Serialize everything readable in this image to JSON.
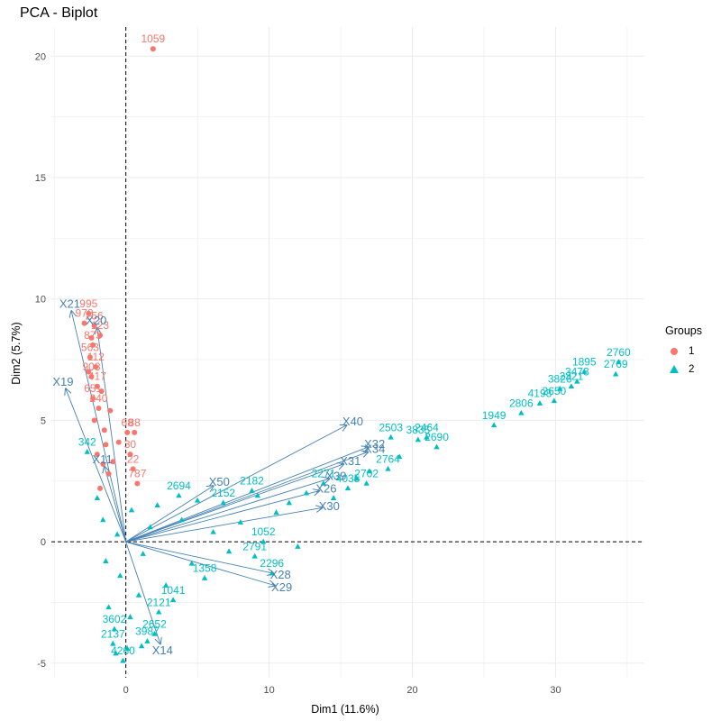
{
  "title": "PCA - Biplot",
  "chart_data": {
    "type": "scatter",
    "title": "PCA - Biplot",
    "xlabel": "Dim1 (11.6%)",
    "ylabel": "Dim2 (5.7%)",
    "xlim": [
      -5.2,
      36.2
    ],
    "ylim": [
      -5.6,
      21.2
    ],
    "xticks": [
      0,
      10,
      20,
      30
    ],
    "yticks": [
      -5,
      0,
      5,
      10,
      15,
      20
    ],
    "grid": true,
    "reference_lines": {
      "x": 0,
      "y": 0,
      "style": "dashed"
    },
    "legend": {
      "title": "Groups",
      "position": "right",
      "entries": [
        {
          "label": "1",
          "color": "#F8766D",
          "shape": "circle"
        },
        {
          "label": "2",
          "color": "#00BFC4",
          "shape": "triangle"
        }
      ]
    },
    "series": [
      {
        "name": "1",
        "color": "#F8766D",
        "points": [
          {
            "x": 1.9,
            "y": 20.3,
            "label": "1059"
          },
          {
            "x": -2.6,
            "y": 9.4,
            "label": "995"
          },
          {
            "x": -2.9,
            "y": 9.0,
            "label": "978"
          },
          {
            "x": -2.2,
            "y": 8.9,
            "label": "256"
          },
          {
            "x": -1.8,
            "y": 8.5,
            "label": "123"
          },
          {
            "x": -2.3,
            "y": 8.1,
            "label": "873"
          },
          {
            "x": -2.5,
            "y": 7.6,
            "label": "563"
          },
          {
            "x": -2.1,
            "y": 7.2,
            "label": "112"
          },
          {
            "x": -2.4,
            "y": 6.8,
            "label": "908"
          },
          {
            "x": -2.0,
            "y": 6.4,
            "label": "417"
          },
          {
            "x": -2.3,
            "y": 5.9,
            "label": "651"
          },
          {
            "x": -1.9,
            "y": 5.5,
            "label": "240"
          },
          {
            "x": 0.1,
            "y": 4.5,
            "label": "68"
          },
          {
            "x": 0.6,
            "y": 4.5,
            "label": "88"
          },
          {
            "x": 0.3,
            "y": 3.6,
            "label": "30"
          },
          {
            "x": 0.5,
            "y": 3.0,
            "label": "22"
          },
          {
            "x": 0.8,
            "y": 2.4,
            "label": "787"
          },
          {
            "x": -1.6,
            "y": 3.2,
            "label": ""
          },
          {
            "x": -1.4,
            "y": 4.0,
            "label": ""
          },
          {
            "x": -2.2,
            "y": 5.0,
            "label": ""
          },
          {
            "x": -1.7,
            "y": 6.2,
            "label": ""
          },
          {
            "x": -2.6,
            "y": 7.0,
            "label": ""
          },
          {
            "x": -1.5,
            "y": 4.6,
            "label": ""
          },
          {
            "x": -2.0,
            "y": 3.6,
            "label": ""
          },
          {
            "x": -1.2,
            "y": 2.8,
            "label": ""
          },
          {
            "x": -0.9,
            "y": 3.3,
            "label": ""
          },
          {
            "x": -1.8,
            "y": 2.2,
            "label": ""
          },
          {
            "x": -0.5,
            "y": 4.1,
            "label": ""
          },
          {
            "x": -1.1,
            "y": 5.4,
            "label": ""
          },
          {
            "x": -2.4,
            "y": 8.4,
            "label": ""
          }
        ]
      },
      {
        "name": "2",
        "color": "#00BFC4",
        "points": [
          {
            "x": 34.4,
            "y": 7.4,
            "label": "2760"
          },
          {
            "x": 34.2,
            "y": 6.9,
            "label": "2769"
          },
          {
            "x": 31.5,
            "y": 6.6,
            "label": "3473"
          },
          {
            "x": 31.1,
            "y": 6.4,
            "label": "2321"
          },
          {
            "x": 30.3,
            "y": 6.3,
            "label": "3826"
          },
          {
            "x": 29.9,
            "y": 5.8,
            "label": "2650"
          },
          {
            "x": 32.0,
            "y": 7.0,
            "label": "1895"
          },
          {
            "x": 28.9,
            "y": 5.7,
            "label": "4198"
          },
          {
            "x": 27.6,
            "y": 5.3,
            "label": "2806"
          },
          {
            "x": 25.7,
            "y": 4.8,
            "label": "1949"
          },
          {
            "x": 21.7,
            "y": 3.9,
            "label": "2690"
          },
          {
            "x": 21.0,
            "y": 4.3,
            "label": "2464"
          },
          {
            "x": 20.4,
            "y": 4.2,
            "label": "3835"
          },
          {
            "x": 18.5,
            "y": 4.3,
            "label": "2503"
          },
          {
            "x": 18.3,
            "y": 3.0,
            "label": "2764"
          },
          {
            "x": 16.8,
            "y": 2.4,
            "label": "2702"
          },
          {
            "x": 15.5,
            "y": 2.2,
            "label": "4035"
          },
          {
            "x": 13.8,
            "y": 2.4,
            "label": "2271"
          },
          {
            "x": 8.8,
            "y": 2.1,
            "label": "2182"
          },
          {
            "x": 3.7,
            "y": 1.9,
            "label": "2694"
          },
          {
            "x": 6.8,
            "y": 1.6,
            "label": "2152"
          },
          {
            "x": 9.6,
            "y": 0.0,
            "label": "1052"
          },
          {
            "x": 9.0,
            "y": -0.6,
            "label": "2791"
          },
          {
            "x": 10.2,
            "y": -1.3,
            "label": "2296"
          },
          {
            "x": 5.5,
            "y": -1.5,
            "label": "1358"
          },
          {
            "x": 3.3,
            "y": -2.4,
            "label": "1041"
          },
          {
            "x": 2.3,
            "y": -2.9,
            "label": "2121"
          },
          {
            "x": 2.0,
            "y": -3.8,
            "label": "2652"
          },
          {
            "x": 1.5,
            "y": -4.1,
            "label": "3987"
          },
          {
            "x": -0.9,
            "y": -4.2,
            "label": "2137"
          },
          {
            "x": -0.2,
            "y": -4.9,
            "label": "4260"
          },
          {
            "x": -0.8,
            "y": -3.6,
            "label": "3602"
          },
          {
            "x": -2.7,
            "y": 3.7,
            "label": "342"
          },
          {
            "x": 12.6,
            "y": 2.0,
            "label": ""
          },
          {
            "x": 14.5,
            "y": 1.8,
            "label": ""
          },
          {
            "x": 11.4,
            "y": 1.6,
            "label": ""
          },
          {
            "x": 16.1,
            "y": 2.6,
            "label": ""
          },
          {
            "x": 17.0,
            "y": 2.9,
            "label": ""
          },
          {
            "x": 19.1,
            "y": 3.5,
            "label": ""
          },
          {
            "x": 10.5,
            "y": 1.2,
            "label": ""
          },
          {
            "x": 8.0,
            "y": 0.8,
            "label": ""
          },
          {
            "x": 7.2,
            "y": -0.4,
            "label": ""
          },
          {
            "x": 6.1,
            "y": 0.4,
            "label": ""
          },
          {
            "x": 4.6,
            "y": -0.9,
            "label": ""
          },
          {
            "x": 3.9,
            "y": 0.9,
            "label": ""
          },
          {
            "x": 2.8,
            "y": -1.8,
            "label": ""
          },
          {
            "x": 1.7,
            "y": 0.6,
            "label": ""
          },
          {
            "x": 0.9,
            "y": -2.2,
            "label": ""
          },
          {
            "x": 0.3,
            "y": -3.1,
            "label": ""
          },
          {
            "x": -0.4,
            "y": -1.4,
            "label": ""
          },
          {
            "x": -1.2,
            "y": -2.7,
            "label": ""
          },
          {
            "x": -1.6,
            "y": 0.9,
            "label": ""
          },
          {
            "x": -2.0,
            "y": 1.8,
            "label": ""
          },
          {
            "x": -1.4,
            "y": -0.8,
            "label": ""
          },
          {
            "x": -0.6,
            "y": 0.3,
            "label": ""
          },
          {
            "x": 0.4,
            "y": 1.3,
            "label": ""
          },
          {
            "x": 1.2,
            "y": -0.5,
            "label": ""
          },
          {
            "x": 2.2,
            "y": 1.5,
            "label": ""
          },
          {
            "x": 5.0,
            "y": 1.7,
            "label": ""
          },
          {
            "x": 9.2,
            "y": 1.9,
            "label": ""
          },
          {
            "x": 12.0,
            "y": -0.2,
            "label": ""
          },
          {
            "x": 0.1,
            "y": -4.4,
            "label": ""
          },
          {
            "x": -0.7,
            "y": -4.6,
            "label": ""
          },
          {
            "x": 1.1,
            "y": -4.3,
            "label": ""
          }
        ]
      }
    ],
    "variables": [
      {
        "name": "X21",
        "x": -3.8,
        "y": 9.5
      },
      {
        "name": "X19",
        "x": -4.2,
        "y": 6.3
      },
      {
        "name": "X40",
        "x": 15.4,
        "y": 4.8
      },
      {
        "name": "X32",
        "x": 16.9,
        "y": 3.9
      },
      {
        "name": "X34",
        "x": 16.9,
        "y": 3.7
      },
      {
        "name": "X31",
        "x": 15.2,
        "y": 3.2
      },
      {
        "name": "X50",
        "x": 6.1,
        "y": 2.3
      },
      {
        "name": "X39",
        "x": 14.2,
        "y": 2.6
      },
      {
        "name": "X26",
        "x": 13.5,
        "y": 2.1
      },
      {
        "name": "X28",
        "x": 10.3,
        "y": -1.3
      },
      {
        "name": "X29",
        "x": 10.4,
        "y": -1.8
      },
      {
        "name": "X14",
        "x": 2.4,
        "y": -4.2
      },
      {
        "name": "X20",
        "x": -2.0,
        "y": 8.8
      },
      {
        "name": "X30",
        "x": 13.7,
        "y": 1.4
      },
      {
        "name": "X11",
        "x": -1.5,
        "y": 3.1
      }
    ]
  }
}
